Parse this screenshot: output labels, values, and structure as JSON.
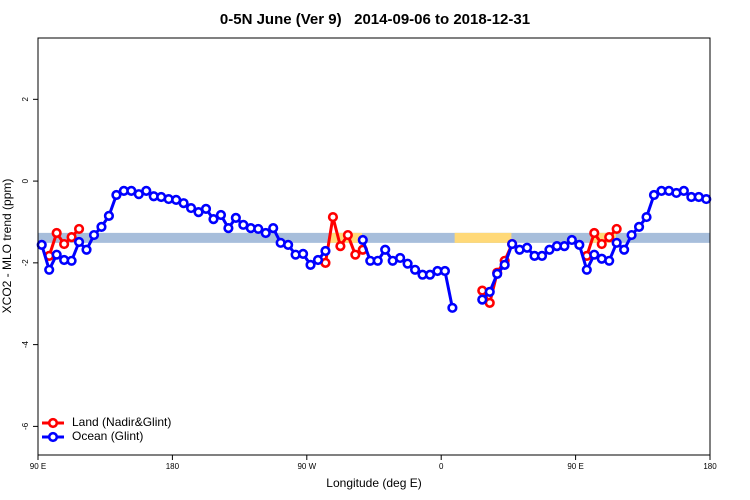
{
  "chart_data": {
    "type": "line",
    "title": "0-5N June (Ver 9)   2014-09-06 to 2018-12-31",
    "x_label": "Longitude (deg E)",
    "y_label": "XCO2 - MLO trend (ppm)",
    "xlim": [
      90,
      540
    ],
    "ylim": [
      -6.7,
      3.5
    ],
    "xticks": [
      {
        "value": 90,
        "label": "90 E"
      },
      {
        "value": 180,
        "label": "180"
      },
      {
        "value": 270,
        "label": "90 W"
      },
      {
        "value": 360,
        "label": "0"
      },
      {
        "value": 450,
        "label": "90 E"
      },
      {
        "value": 540,
        "label": "180"
      }
    ],
    "yticks": [
      -6,
      -4,
      -2,
      0,
      2
    ],
    "legend": "bottomleft",
    "band": {
      "value": -1.39,
      "color": "#a7bedb",
      "highlight_color": "#ffd978",
      "highlights": [
        [
          285,
          307
        ],
        [
          369,
          407
        ],
        [
          460,
          477
        ]
      ]
    },
    "x": [
      92.5,
      97.5,
      102.5,
      107.5,
      112.5,
      117.5,
      122.5,
      127.5,
      132.5,
      137.5,
      142.5,
      147.5,
      152.5,
      157.5,
      162.5,
      167.5,
      172.5,
      177.5,
      182.5,
      187.5,
      192.5,
      197.5,
      202.5,
      207.5,
      212.5,
      217.5,
      222.5,
      227.5,
      232.5,
      237.5,
      242.5,
      247.5,
      252.5,
      257.5,
      262.5,
      267.5,
      272.5,
      277.5,
      282.5,
      287.5,
      292.5,
      297.5,
      302.5,
      307.5,
      312.5,
      317.5,
      322.5,
      327.5,
      332.5,
      337.5,
      342.5,
      347.5,
      352.5,
      357.5,
      362.5,
      367.5,
      372.5,
      377.5,
      382.5,
      387.5,
      392.5,
      397.5,
      402.5,
      407.5,
      412.5,
      417.5,
      422.5,
      427.5,
      432.5,
      437.5,
      442.5,
      447.5,
      452.5,
      457.5,
      462.5,
      467.5,
      472.5,
      477.5,
      482.5,
      487.5,
      492.5,
      497.5,
      502.5,
      507.5,
      512.5,
      517.5,
      522.5,
      527.5,
      532.5,
      537.5
    ],
    "series": [
      {
        "name": "Land (Nadir&Glint)",
        "color": "#ff0000",
        "values": [
          null,
          -1.83,
          -1.27,
          -1.54,
          -1.37,
          -1.17,
          null,
          null,
          null,
          null,
          null,
          null,
          null,
          null,
          null,
          null,
          null,
          null,
          null,
          null,
          null,
          null,
          null,
          null,
          null,
          null,
          null,
          null,
          null,
          null,
          null,
          null,
          null,
          null,
          null,
          null,
          null,
          null,
          -2.0,
          -0.88,
          -1.59,
          -1.32,
          -1.8,
          -1.68,
          null,
          null,
          null,
          null,
          null,
          null,
          null,
          null,
          null,
          null,
          null,
          null,
          null,
          null,
          null,
          -2.68,
          -2.98,
          -2.24,
          -1.95,
          -1.54,
          null,
          null,
          null,
          null,
          null,
          null,
          null,
          null,
          null,
          -1.83,
          -1.27,
          -1.54,
          -1.37,
          -1.17,
          null,
          null,
          null,
          null,
          null,
          null,
          null,
          null,
          null,
          null,
          null,
          null
        ]
      },
      {
        "name": "Ocean (Glint)",
        "color": "#0000ff",
        "values": [
          -1.56,
          -2.17,
          -1.8,
          -1.93,
          -1.95,
          -1.49,
          -1.68,
          -1.32,
          -1.12,
          -0.85,
          -0.34,
          -0.24,
          -0.24,
          -0.32,
          -0.24,
          -0.37,
          -0.39,
          -0.44,
          -0.46,
          -0.54,
          -0.66,
          -0.76,
          -0.68,
          -0.93,
          -0.83,
          -1.15,
          -0.9,
          -1.07,
          -1.15,
          -1.17,
          -1.27,
          -1.15,
          -1.51,
          -1.56,
          -1.8,
          -1.78,
          -2.05,
          -1.93,
          -1.71,
          null,
          null,
          null,
          null,
          -1.44,
          -1.95,
          -1.95,
          -1.68,
          -1.95,
          -1.88,
          -2.02,
          -2.17,
          -2.29,
          -2.29,
          -2.2,
          -2.2,
          -3.1,
          null,
          null,
          null,
          -2.9,
          -2.71,
          -2.27,
          -2.05,
          -1.54,
          -1.68,
          -1.63,
          -1.83,
          -1.83,
          -1.68,
          -1.59,
          -1.59,
          -1.44,
          -1.56,
          -2.17,
          -1.8,
          -1.9,
          -1.95,
          -1.51,
          -1.68,
          -1.32,
          -1.12,
          -0.88,
          -0.34,
          -0.24,
          -0.24,
          -0.29,
          -0.24,
          -0.39,
          -0.39,
          -0.44
        ]
      }
    ]
  }
}
